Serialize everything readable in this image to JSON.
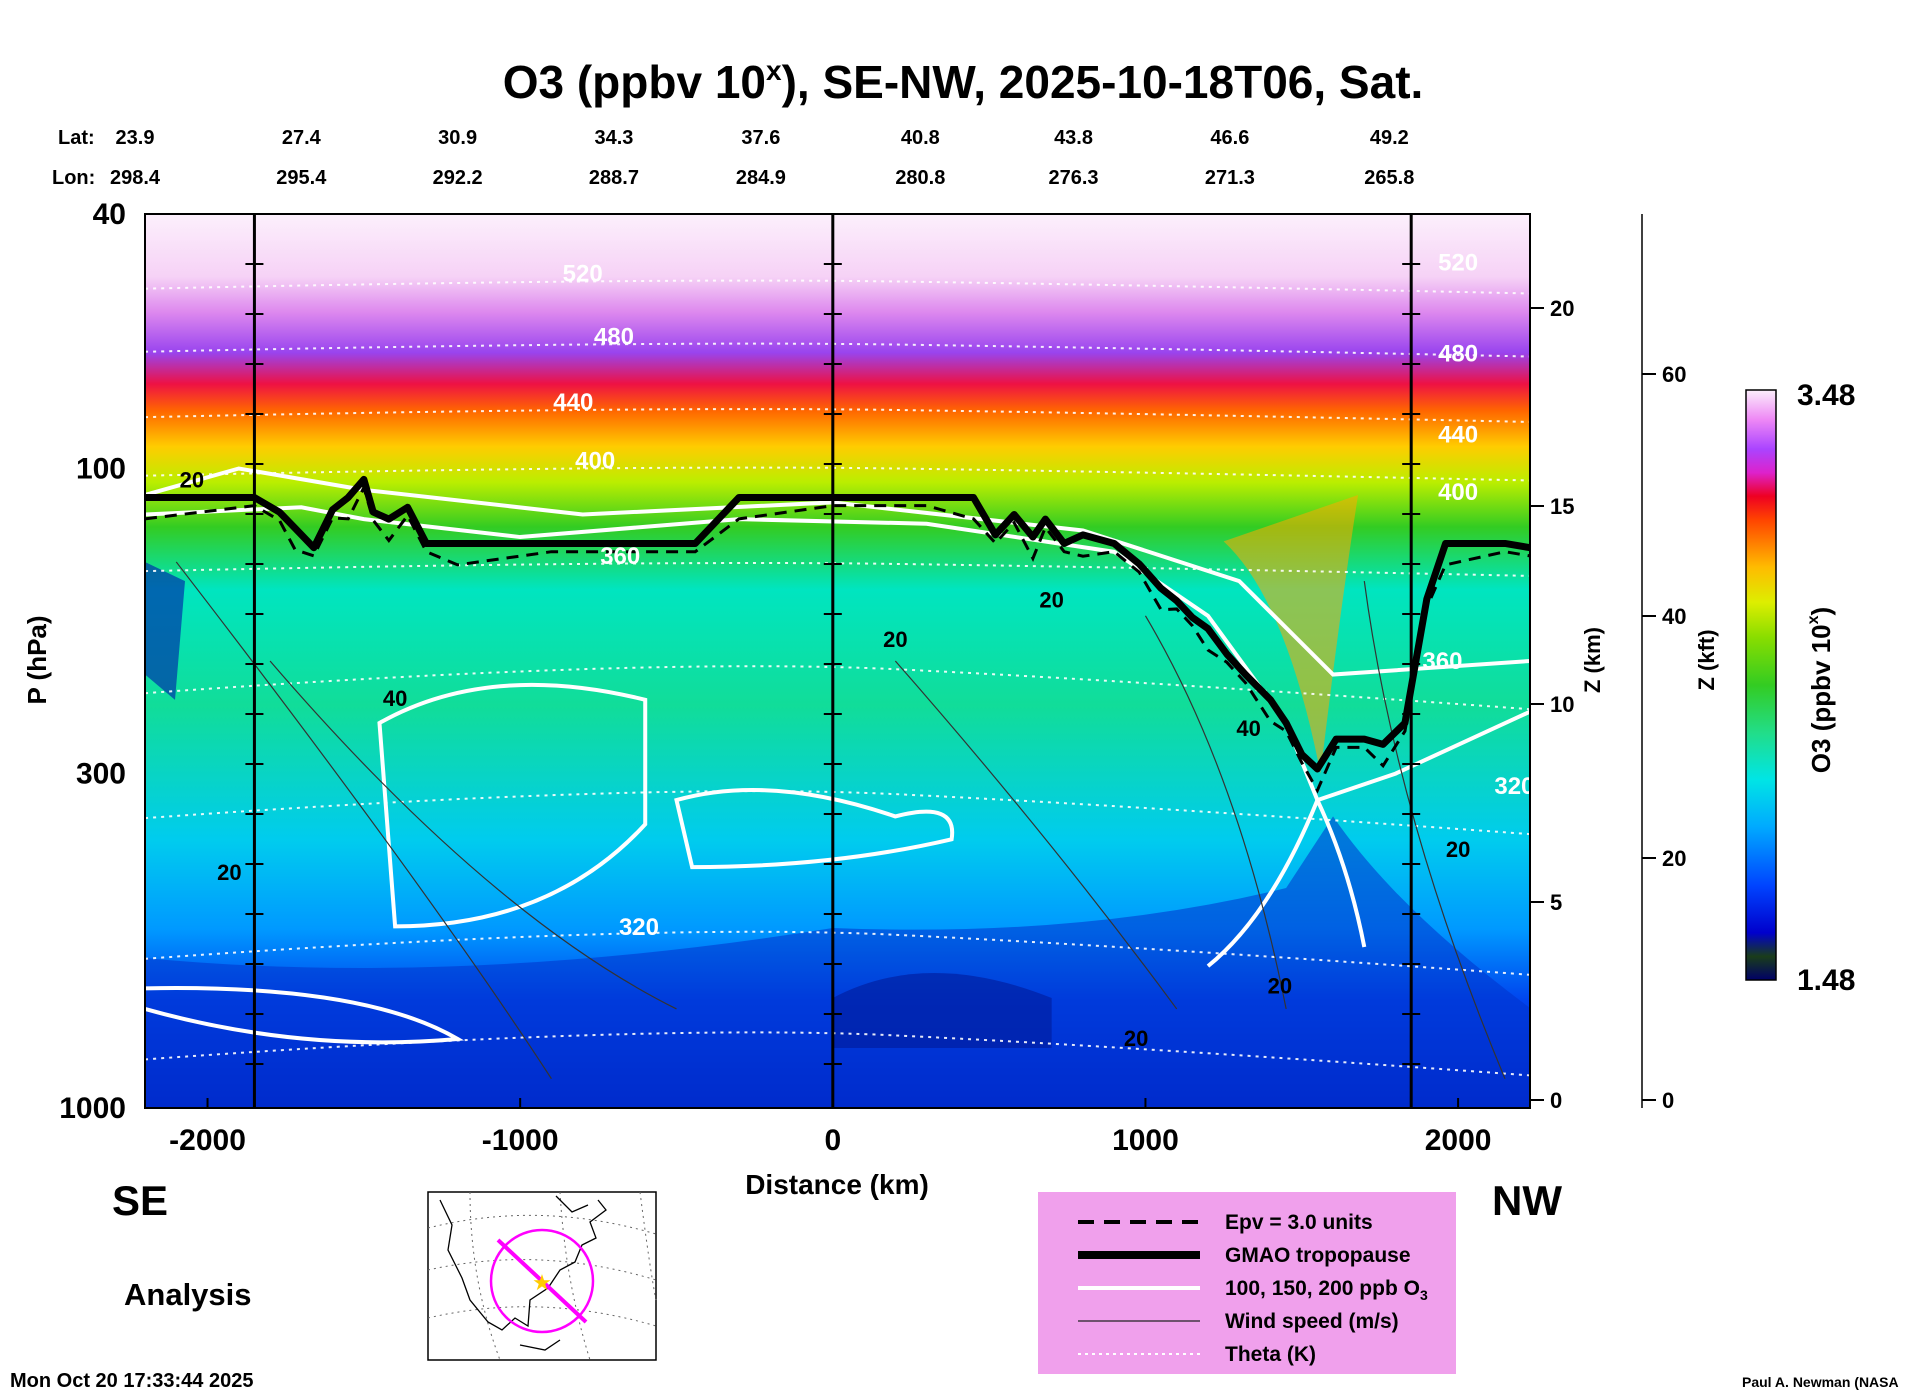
{
  "chart_data": {
    "type": "heatmap",
    "title": {
      "prefix": "O3 (ppbv 10",
      "sup": "x",
      "suffix": "), SE-NW, 2025-10-18T06, Sat."
    },
    "xlabel": "Distance (km)",
    "ylabel": "P (hPa)",
    "y2label": "Z (km)",
    "y3label": "Z (kft)",
    "colorbar_label": "O3 (ppbv 10",
    "colorbar_label_sup": "x",
    "colorbar_label_end": ")",
    "colorbar_max_label": "3.48",
    "colorbar_min_label": "1.48",
    "colorbar_range": [
      1.48,
      3.48
    ],
    "xlim": [
      -2200,
      2230
    ],
    "ylim": [
      1000,
      40
    ],
    "y_scale": "log",
    "x_ticks": [
      {
        "v": -2000,
        "l": "-2000"
      },
      {
        "v": -1000,
        "l": "-1000"
      },
      {
        "v": 0,
        "l": "0"
      },
      {
        "v": 1000,
        "l": "1000"
      },
      {
        "v": 2000,
        "l": "2000"
      }
    ],
    "p_ticks": [
      {
        "v": 40,
        "l": "40"
      },
      {
        "v": 100,
        "l": "100"
      },
      {
        "v": 300,
        "l": "300"
      },
      {
        "v": 1000,
        "l": "1000"
      }
    ],
    "z_km_ticks": [
      {
        "v": 0,
        "l": "0"
      },
      {
        "v": 5,
        "l": "5"
      },
      {
        "v": 10,
        "l": "10"
      },
      {
        "v": 15,
        "l": "15"
      },
      {
        "v": 20,
        "l": "20"
      }
    ],
    "z_kft_ticks": [
      {
        "v": 0,
        "l": "0"
      },
      {
        "v": 20,
        "l": "20"
      },
      {
        "v": 40,
        "l": "40"
      },
      {
        "v": 60,
        "l": "60"
      }
    ],
    "lat_label": "Lat:",
    "lon_label": "Lon:",
    "lat_lon": [
      {
        "x": -2200,
        "lat": "23.9",
        "lon": "298.4"
      },
      {
        "x": -1700,
        "lat": "27.4",
        "lon": "295.4"
      },
      {
        "x": -1200,
        "lat": "30.9",
        "lon": "292.2"
      },
      {
        "x": -700,
        "lat": "34.3",
        "lon": "288.7"
      },
      {
        "x": -230,
        "lat": "37.6",
        "lon": "284.9"
      },
      {
        "x": 280,
        "lat": "40.8",
        "lon": "280.8"
      },
      {
        "x": 770,
        "lat": "43.8",
        "lon": "276.3"
      },
      {
        "x": 1270,
        "lat": "46.6",
        "lon": "271.3"
      },
      {
        "x": 1780,
        "lat": "49.2",
        "lon": "265.8"
      }
    ],
    "vertical_lines_km": [
      -1850,
      0,
      1850
    ],
    "tropopause_hpa": [
      {
        "x": -2200,
        "p": 111
      },
      {
        "x": -1850,
        "p": 111
      },
      {
        "x": -1770,
        "p": 117
      },
      {
        "x": -1720,
        "p": 124
      },
      {
        "x": -1660,
        "p": 133
      },
      {
        "x": -1600,
        "p": 116
      },
      {
        "x": -1550,
        "p": 111
      },
      {
        "x": -1500,
        "p": 104
      },
      {
        "x": -1470,
        "p": 117
      },
      {
        "x": -1420,
        "p": 120
      },
      {
        "x": -1360,
        "p": 115
      },
      {
        "x": -1300,
        "p": 131
      },
      {
        "x": -1200,
        "p": 131
      },
      {
        "x": -900,
        "p": 131
      },
      {
        "x": -440,
        "p": 131
      },
      {
        "x": -300,
        "p": 111
      },
      {
        "x": 0,
        "p": 111
      },
      {
        "x": 300,
        "p": 111
      },
      {
        "x": 450,
        "p": 111
      },
      {
        "x": 520,
        "p": 127
      },
      {
        "x": 580,
        "p": 118
      },
      {
        "x": 640,
        "p": 128
      },
      {
        "x": 680,
        "p": 120
      },
      {
        "x": 740,
        "p": 131
      },
      {
        "x": 800,
        "p": 127
      },
      {
        "x": 900,
        "p": 131
      },
      {
        "x": 980,
        "p": 141
      },
      {
        "x": 1050,
        "p": 154
      },
      {
        "x": 1100,
        "p": 161
      },
      {
        "x": 1150,
        "p": 171
      },
      {
        "x": 1200,
        "p": 178
      },
      {
        "x": 1260,
        "p": 195
      },
      {
        "x": 1320,
        "p": 210
      },
      {
        "x": 1400,
        "p": 230
      },
      {
        "x": 1450,
        "p": 250
      },
      {
        "x": 1500,
        "p": 280
      },
      {
        "x": 1550,
        "p": 295
      },
      {
        "x": 1610,
        "p": 265
      },
      {
        "x": 1700,
        "p": 265
      },
      {
        "x": 1760,
        "p": 270
      },
      {
        "x": 1830,
        "p": 250
      },
      {
        "x": 1900,
        "p": 160
      },
      {
        "x": 1960,
        "p": 131
      },
      {
        "x": 2150,
        "p": 131
      },
      {
        "x": 2230,
        "p": 133
      }
    ],
    "theta_labels": [
      {
        "x": -800,
        "p": 51,
        "l": "520"
      },
      {
        "x": 2000,
        "p": 49,
        "l": "520"
      },
      {
        "x": -700,
        "p": 64,
        "l": "480"
      },
      {
        "x": 2000,
        "p": 68,
        "l": "480"
      },
      {
        "x": -830,
        "p": 81,
        "l": "440"
      },
      {
        "x": 2000,
        "p": 91,
        "l": "440"
      },
      {
        "x": -760,
        "p": 100,
        "l": "400"
      },
      {
        "x": 2000,
        "p": 112,
        "l": "400"
      },
      {
        "x": -680,
        "p": 141,
        "l": "360"
      },
      {
        "x": 1950,
        "p": 206,
        "l": "360"
      },
      {
        "x": -620,
        "p": 536,
        "l": "320"
      },
      {
        "x": 2180,
        "p": 323,
        "l": "320"
      }
    ],
    "wind_labels": [
      {
        "x": -2050,
        "p": 107,
        "l": "20"
      },
      {
        "x": -1400,
        "p": 235,
        "l": "40"
      },
      {
        "x": -1930,
        "p": 440,
        "l": "20"
      },
      {
        "x": 200,
        "p": 190,
        "l": "20"
      },
      {
        "x": 700,
        "p": 165,
        "l": "20"
      },
      {
        "x": 1330,
        "p": 262,
        "l": "40"
      },
      {
        "x": 2000,
        "p": 405,
        "l": "20"
      },
      {
        "x": 1430,
        "p": 662,
        "l": "20"
      },
      {
        "x": 970,
        "p": 800,
        "l": "20"
      }
    ],
    "legend": {
      "items": [
        {
          "key": "epv",
          "label": "Epv = 3.0 units"
        },
        {
          "key": "trop",
          "label": "GMAO tropopause"
        },
        {
          "key": "o3",
          "label": "100, 150, 200 ppb O",
          "sub": "3"
        },
        {
          "key": "wind",
          "label": "Wind speed (m/s)"
        },
        {
          "key": "theta",
          "label": "Theta (K)"
        }
      ],
      "bg": "#f0a0ec"
    },
    "left_label": "SE",
    "right_label": "NW",
    "analysis_label": "Analysis",
    "timestamp": "Mon Oct 20 17:33:44 2025",
    "credit": "Paul A. Newman (NASA",
    "colors": {
      "tropopause": "#000000",
      "o3_contour": "#ffffff",
      "map_line": "#ff00ff",
      "map_star": "#ffcc00"
    }
  }
}
